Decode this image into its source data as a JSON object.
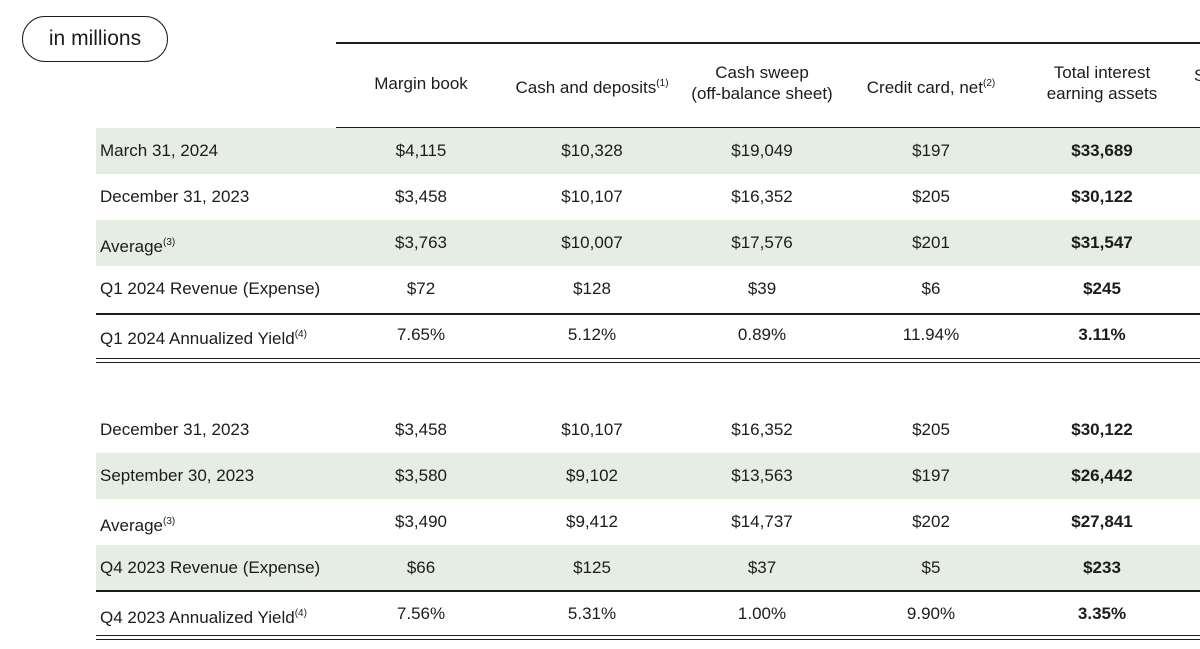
{
  "unit_label": "in millions",
  "columns": [
    {
      "line1": "Margin book",
      "line2": "",
      "sup": ""
    },
    {
      "line1": "Cash and deposits",
      "line2": "",
      "sup": "(1)"
    },
    {
      "line1": "Cash sweep",
      "line2": "(off-balance sheet)",
      "sup": ""
    },
    {
      "line1": "Credit card, net",
      "line2": "",
      "sup": "(2)"
    },
    {
      "line1": "Total interest",
      "line2": "earning assets",
      "sup": ""
    }
  ],
  "cut_off_header_char": "S",
  "section1": [
    {
      "label": "March 31, 2024",
      "sup": "",
      "values": [
        "$4,115",
        "$10,328",
        "$19,049",
        "$197",
        "$33,689"
      ]
    },
    {
      "label": "December 31, 2023",
      "sup": "",
      "values": [
        "$3,458",
        "$10,107",
        "$16,352",
        "$205",
        "$30,122"
      ]
    },
    {
      "label": "Average",
      "sup": "(3)",
      "values": [
        "$3,763",
        "$10,007",
        "$17,576",
        "$201",
        "$31,547"
      ]
    },
    {
      "label": "Q1 2024 Revenue (Expense)",
      "sup": "",
      "values": [
        "$72",
        "$128",
        "$39",
        "$6",
        "$245"
      ]
    },
    {
      "label": "Q1 2024 Annualized Yield",
      "sup": "(4)",
      "values": [
        "7.65%",
        "5.12%",
        "0.89%",
        "11.94%",
        "3.11%"
      ]
    }
  ],
  "section2": [
    {
      "label": "December 31, 2023",
      "sup": "",
      "values": [
        "$3,458",
        "$10,107",
        "$16,352",
        "$205",
        "$30,122"
      ]
    },
    {
      "label": "September 30, 2023",
      "sup": "",
      "values": [
        "$3,580",
        "$9,102",
        "$13,563",
        "$197",
        "$26,442"
      ]
    },
    {
      "label": "Average",
      "sup": "(3)",
      "values": [
        "$3,490",
        "$9,412",
        "$14,737",
        "$202",
        "$27,841"
      ]
    },
    {
      "label": "Q4 2023 Revenue (Expense)",
      "sup": "",
      "values": [
        "$66",
        "$125",
        "$37",
        "$5",
        "$233"
      ]
    },
    {
      "label": "Q4 2023 Annualized Yield",
      "sup": "(4)",
      "values": [
        "7.56%",
        "5.31%",
        "1.00%",
        "9.90%",
        "3.35%"
      ]
    }
  ]
}
